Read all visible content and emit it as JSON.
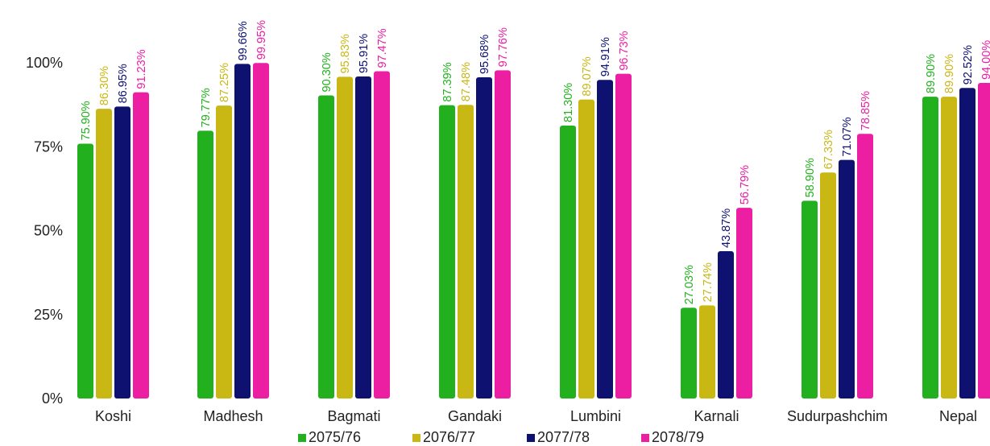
{
  "chart_data": {
    "type": "bar",
    "title": "",
    "xlabel": "",
    "ylabel": "",
    "ylim": [
      0,
      100
    ],
    "y_ticks": [
      0,
      25,
      50,
      75,
      100
    ],
    "y_tick_labels": [
      "0%",
      "25%",
      "50%",
      "75%",
      "100%"
    ],
    "grid": false,
    "legend_position": "bottom",
    "categories": [
      "Koshi",
      "Madhesh",
      "Bagmati",
      "Gandaki",
      "Lumbini",
      "Karnali",
      "Sudurpashchim",
      "Nepal"
    ],
    "series": [
      {
        "name": "2075/76",
        "color": "#22b01f",
        "values": [
          75.9,
          79.77,
          90.3,
          87.39,
          81.3,
          27.03,
          58.9,
          89.9
        ],
        "labels": [
          "75.90%",
          "79.77%",
          "90.30%",
          "87.39%",
          "81.30%",
          "27.03%",
          "58.90%",
          "89.90%"
        ]
      },
      {
        "name": "2076/77",
        "color": "#c9b713",
        "values": [
          86.3,
          87.25,
          95.83,
          87.48,
          89.07,
          27.74,
          67.33,
          89.9
        ],
        "labels": [
          "86.30%",
          "87.25%",
          "95.83%",
          "87.48%",
          "89.07%",
          "27.74%",
          "67.33%",
          "89.90%"
        ]
      },
      {
        "name": "2077/78",
        "color": "#0e1170",
        "values": [
          86.95,
          99.66,
          95.91,
          95.68,
          94.91,
          43.87,
          71.07,
          92.52
        ],
        "labels": [
          "86.95%",
          "99.66%",
          "95.91%",
          "95.68%",
          "94.91%",
          "43.87%",
          "71.07%",
          "92.52%"
        ]
      },
      {
        "name": "2078/79",
        "color": "#ec1fa3",
        "values": [
          91.23,
          99.95,
          97.47,
          97.76,
          96.73,
          56.79,
          78.85,
          94.0
        ],
        "labels": [
          "91.23%",
          "99.95%",
          "97.47%",
          "97.76%",
          "96.73%",
          "56.79%",
          "78.85%",
          "94.00%"
        ]
      }
    ]
  }
}
